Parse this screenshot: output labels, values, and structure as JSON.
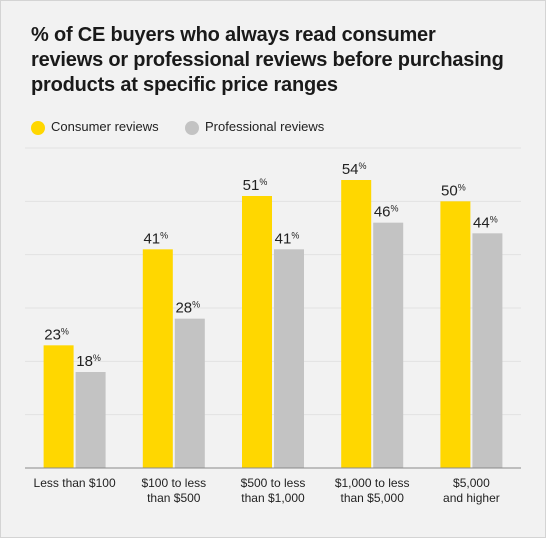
{
  "title_lines": [
    "% of CE buyers who always read consumer",
    "reviews or professional reviews before purchasing",
    "products at specific price ranges"
  ],
  "colors": {
    "consumer": "#ffd700",
    "professional": "#c3c3c3",
    "grid": "#e2e2e2",
    "axis": "#8a8a8a",
    "text": "#222222",
    "background": "#f2f2f2"
  },
  "chart_data": {
    "type": "bar",
    "title": "% of CE buyers who always read consumer reviews or professional reviews before purchasing products at specific price ranges",
    "categories": [
      [
        "Less than $100"
      ],
      [
        "$100 to less",
        "than $500"
      ],
      [
        "$500 to less",
        "than $1,000"
      ],
      [
        "$1,000 to less",
        "than $5,000"
      ],
      [
        "$5,000",
        "and higher"
      ]
    ],
    "series": [
      {
        "name": "Consumer reviews",
        "values": [
          23,
          41,
          51,
          54,
          50
        ]
      },
      {
        "name": "Professional reviews",
        "values": [
          18,
          28,
          41,
          46,
          44
        ]
      }
    ],
    "value_suffix": "%",
    "ylim": [
      0,
      60
    ],
    "grid": true,
    "legend": "top-left",
    "xlabel": "",
    "ylabel": ""
  }
}
